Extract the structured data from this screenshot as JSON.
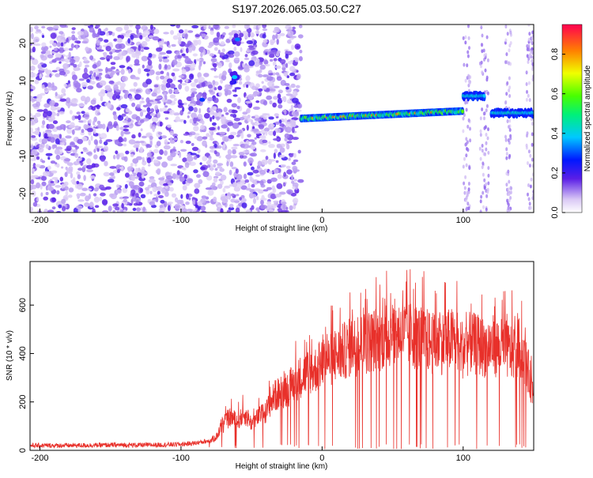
{
  "title": "S197.2026.065.03.50.C27",
  "chart_data": [
    {
      "type": "heatmap",
      "xlabel": "Height of straight line (km)",
      "ylabel": "Frequency (Hz)",
      "xlim": [
        -207,
        150
      ],
      "ylim": [
        -25,
        25
      ],
      "x_ticks": [
        -200,
        -100,
        0,
        100
      ],
      "y_ticks": [
        -20,
        -10,
        0,
        10,
        20
      ],
      "colorbar": {
        "label": "Normalized spectral amplitude",
        "range": [
          0,
          0.95
        ],
        "ticks": [
          0.0,
          0.2,
          0.4,
          0.6,
          0.8
        ]
      },
      "features": [
        {
          "x_range": [
            -207,
            -15
          ],
          "description_kind": "diffuse purple noise across all frequencies",
          "level": 0.1
        },
        {
          "x": -62,
          "y": 11,
          "level": 0.25
        },
        {
          "x": -60,
          "y": 21,
          "level": 0.2
        },
        {
          "x": -85,
          "y": 5,
          "level": 0.15
        },
        {
          "x_range": [
            -15,
            100
          ],
          "y_center": [
            0,
            2
          ],
          "level_range": [
            0.3,
            0.9
          ]
        },
        {
          "x_range": [
            100,
            115
          ],
          "y_center": 6,
          "level": 0.3
        },
        {
          "x_range": [
            120,
            150
          ],
          "y_center": 1.5,
          "level": 0.3
        }
      ]
    },
    {
      "type": "line",
      "xlabel": "Height of straight line (km)",
      "ylabel": "SNR (10 * v/v)",
      "xlim": [
        -207,
        150
      ],
      "ylim": [
        0,
        780
      ],
      "x_ticks": [
        -200,
        -100,
        0,
        100
      ],
      "y_ticks": [
        0,
        200,
        400,
        600
      ],
      "color": "#e8302a",
      "series": [
        {
          "x": [
            -207,
            -180,
            -150,
            -120,
            -100,
            -90,
            -80,
            -75,
            -70,
            -65,
            -60,
            -55,
            -50,
            -45,
            -40,
            -35,
            -30,
            -25,
            -20,
            -15,
            -10,
            -5,
            0,
            5,
            10,
            15,
            20,
            25,
            30,
            35,
            40,
            45,
            50,
            55,
            60,
            65,
            70,
            75,
            80,
            85,
            90,
            95,
            100,
            105,
            110,
            115,
            120,
            125,
            130,
            135,
            140,
            145,
            150
          ],
          "y": [
            20,
            20,
            22,
            22,
            25,
            30,
            40,
            60,
            110,
            150,
            130,
            160,
            120,
            150,
            170,
            230,
            260,
            270,
            300,
            330,
            350,
            360,
            380,
            400,
            420,
            440,
            460,
            470,
            480,
            490,
            500,
            510,
            520,
            530,
            520,
            510,
            500,
            490,
            470,
            480,
            490,
            500,
            450,
            480,
            470,
            460,
            470,
            460,
            450,
            440,
            460,
            380,
            250
          ]
        }
      ]
    }
  ]
}
